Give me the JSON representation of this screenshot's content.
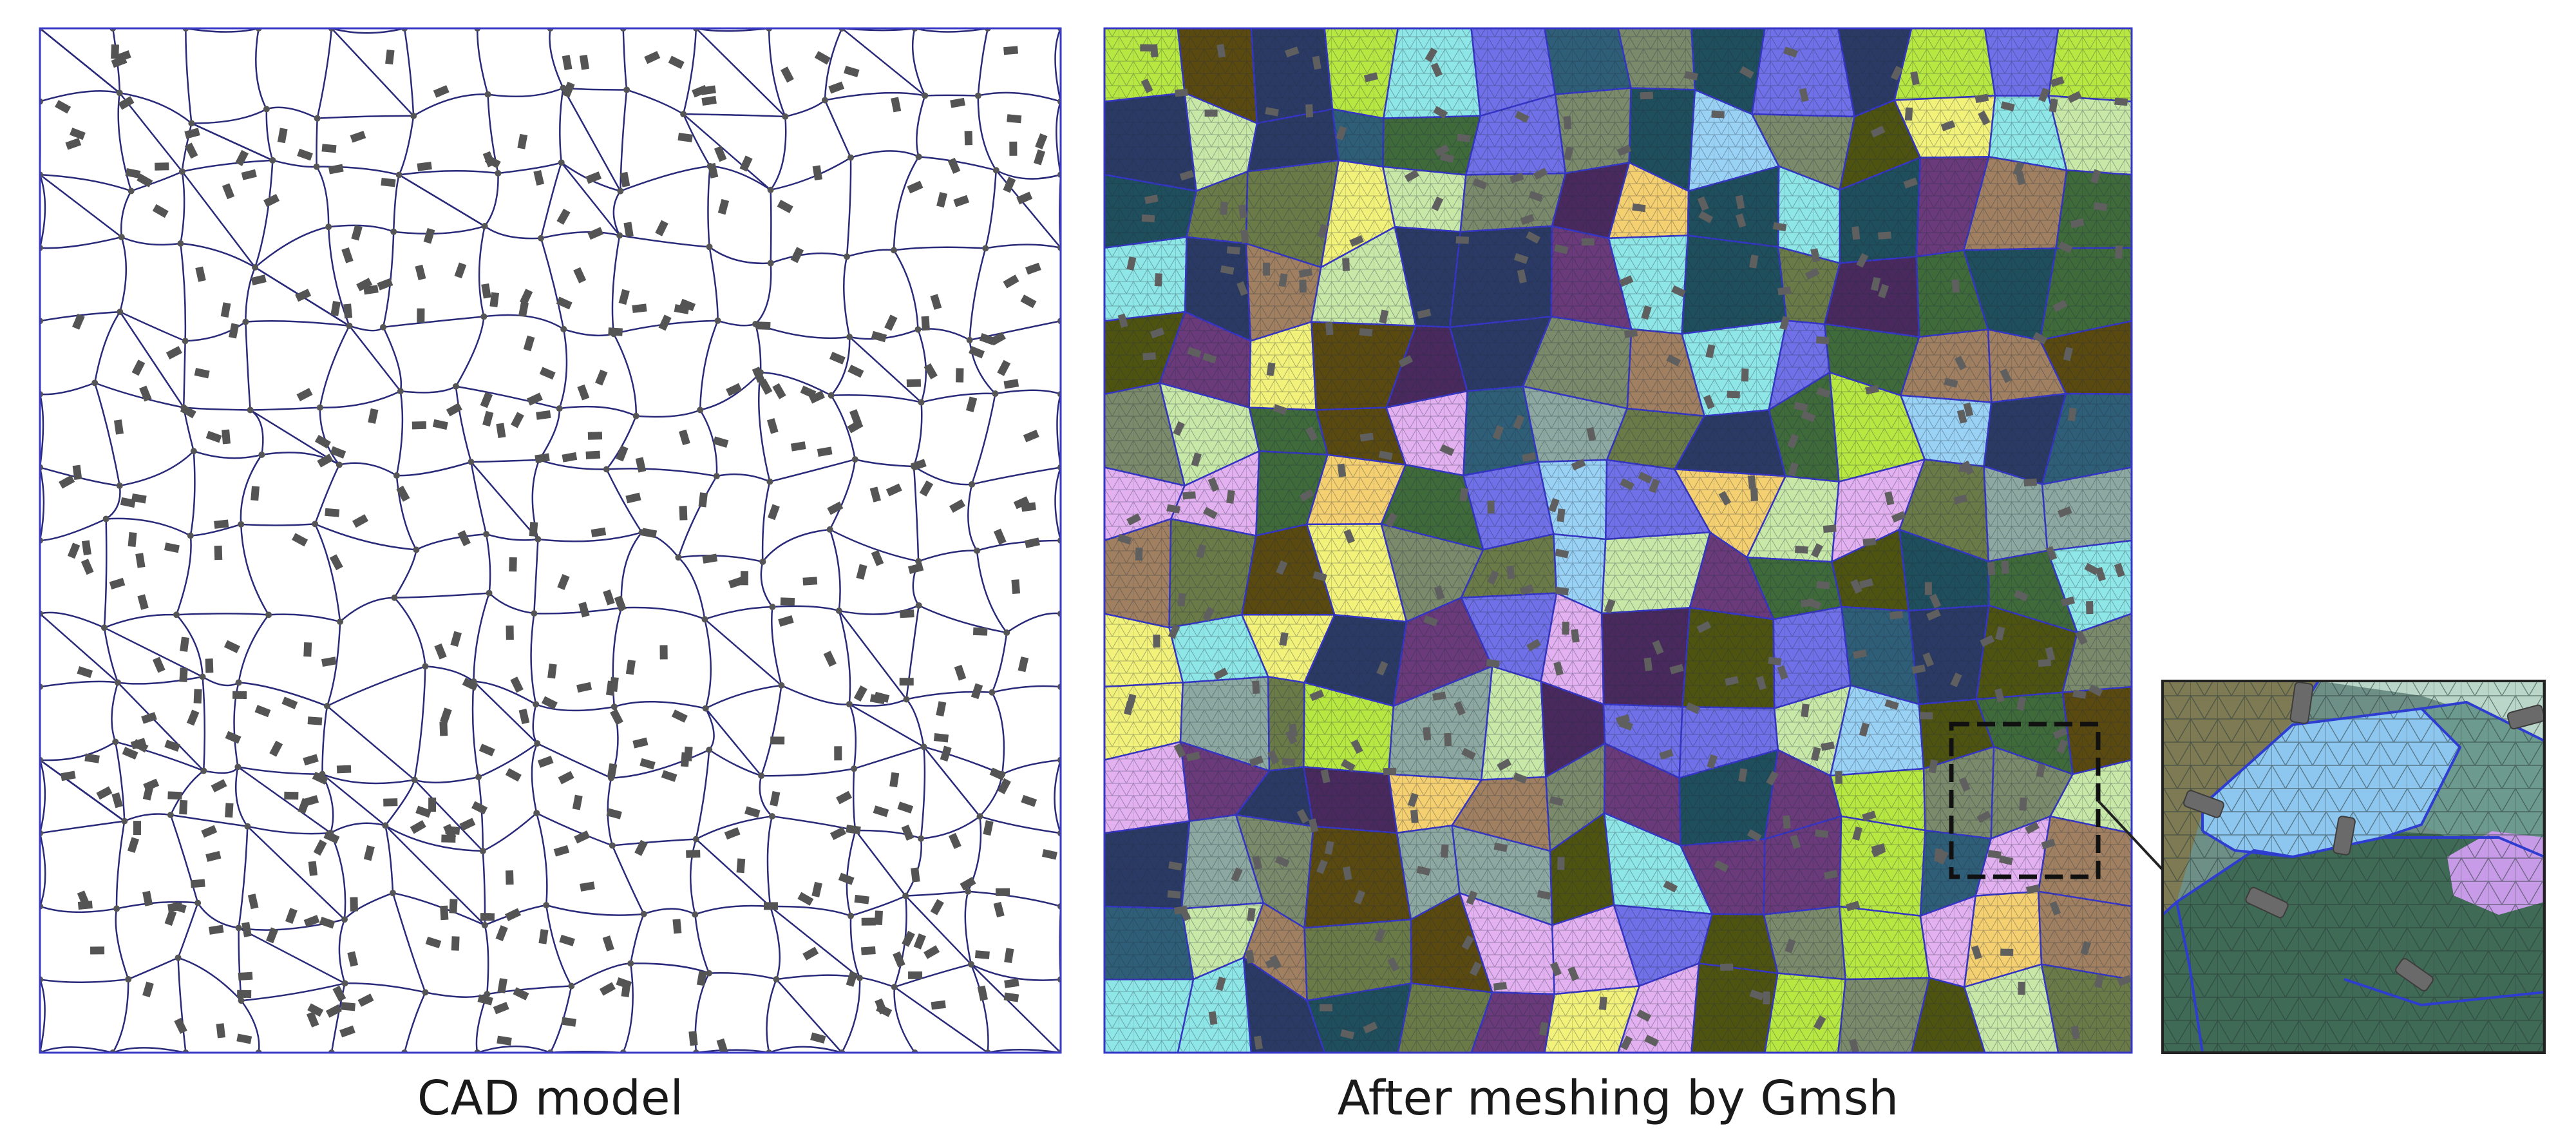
{
  "captions": {
    "left": "CAD model",
    "right": "After meshing by Gmsh"
  },
  "panels": {
    "cad_model": {
      "boundary_color": "#3a3ac8",
      "grain_boundary_color": "#2a2a7a",
      "node_color": "#555555",
      "particle_color": "#545454",
      "background": "#ffffff"
    },
    "mesh": {
      "mesh_line_color": "#1e2a40",
      "boundary_color": "#3535c8",
      "particle_color": "#5f5f5f",
      "grain_palette": [
        "#5a4a10",
        "#4e5410",
        "#1f4e5c",
        "#2a3a64",
        "#4a2a5e",
        "#6b7b48",
        "#7a8a6a",
        "#3f6a3a",
        "#8da8a0",
        "#a08060",
        "#b7e842",
        "#8ee6e6",
        "#f2f27a",
        "#e3b0f0",
        "#9ad2f5",
        "#f5d070",
        "#c8e8a8",
        "#7070e8",
        "#6a3a7a",
        "#2f5f78"
      ],
      "zoom_box": {
        "style": "dashed",
        "color": "#111111"
      }
    },
    "zoom_inset": {
      "border_color": "#222222",
      "highlight_grain_color": "#8dc7f0",
      "highlight_boundary_color": "#2f3cd0"
    }
  }
}
